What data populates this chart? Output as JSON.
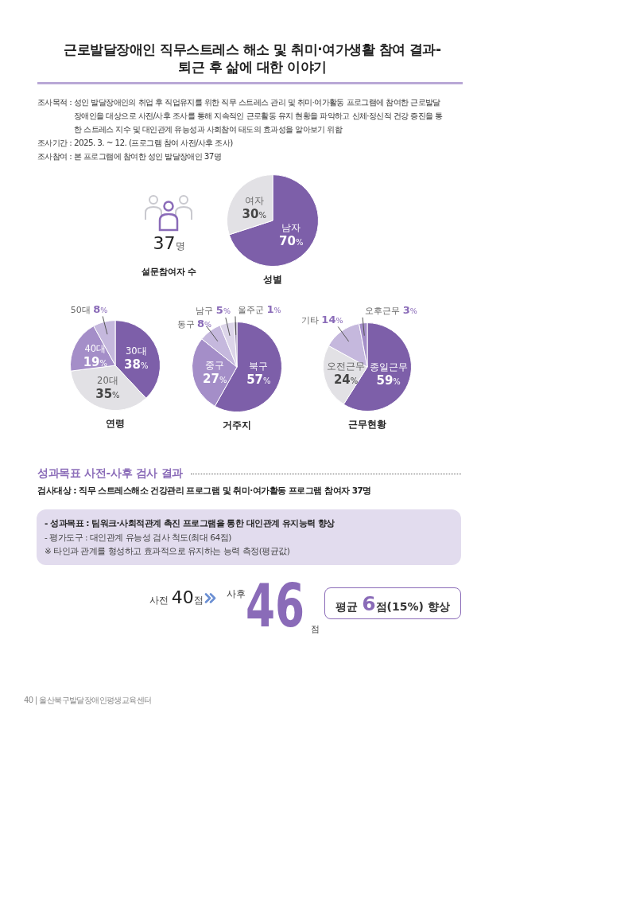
{
  "chart_data": [
    {
      "type": "other",
      "title": "근로발달장애인 직무스트레스 해소 및 취미·여가생활 참여 결과-\n퇴근 후 삶에 대한 이야기",
      "annotations": [
        "조사목적 : 성인 발달장애인의 취업 후 직업유지를 위한 직무 스트레스 관리 및 취미·여가활동 프로그램에 참여한 근로발달장애인을 대상으로 사전/사후 조사를 통해 지속적인 근로활동 유지 현황을 파악하고 신체·정신적 건강 증진을 통한 스트레스 지수 및 대인관계 유능성과 사회참여 태도의 효과성을 알아보기 위함",
        "조사기간 : 2025. 3. ~ 12. (프로그램 참여 사전/사후 조사)",
        "조사참여 : 본 프로그램에 참여한 성인 발달장애인 37명"
      ]
    },
    {
      "type": "other",
      "title": "설문참여자 수",
      "annotations": [
        "37명"
      ]
    },
    {
      "type": "pie",
      "title": "성별",
      "categories": [
        "남자",
        "여자"
      ],
      "values": [
        70,
        30
      ],
      "colors": [
        "#7d5fa9",
        "#e2e1e5"
      ],
      "value_labels": [
        "70%",
        "30%"
      ]
    },
    {
      "type": "pie",
      "title": "연령",
      "categories": [
        "30대",
        "20대",
        "40대",
        "50대"
      ],
      "values": [
        38,
        35,
        19,
        8
      ],
      "colors": [
        "#7d5fa9",
        "#e2e1e5",
        "#a48ec8",
        "#c5b8dd"
      ],
      "value_labels": [
        "38%",
        "35%",
        "19%",
        "8%"
      ]
    },
    {
      "type": "pie",
      "title": "거주지",
      "categories": [
        "북구",
        "중구",
        "동구",
        "남구",
        "울주군"
      ],
      "values": [
        57,
        27,
        8,
        5,
        1
      ],
      "colors": [
        "#7d5fa9",
        "#a48ec8",
        "#c5b8dd",
        "#dcd5e9",
        "#9d90b5"
      ],
      "value_labels": [
        "57%",
        "27%",
        "8%",
        "5%",
        "1%"
      ]
    },
    {
      "type": "pie",
      "title": "근무현황",
      "categories": [
        "종일근무",
        "오전근무",
        "기타",
        "오후근무"
      ],
      "values": [
        59,
        24,
        14,
        3
      ],
      "colors": [
        "#7d5fa9",
        "#e2e1e5",
        "#c5b8dd",
        "#a48ec8"
      ],
      "value_labels": [
        "59%",
        "24%",
        "14%",
        "3%"
      ]
    },
    {
      "type": "other",
      "title": "성과목표 사전-사후 검사 결과",
      "subtitle": "검사대상 : 직무 스트레스해소 건강관리 프로그램 및 취미·여가활동 프로그램 참여자 37명",
      "annotations": [
        "- 성과목표 : 팀워크·사회적관계 촉진 프로그램을 통한 대인관계 유지능력 향상",
        "- 평가도구 : 대인관계 유능성 검사 척도(최대 64점)",
        "※ 타인과 관계를 형성하고 효과적으로 유지하는 능력 측정(평균값)",
        "사전 40점",
        "사후",
        "46점",
        "평균 6점(15%) 향상",
        "40 | 울산북구발달장애인평생교육센터"
      ]
    }
  ]
}
